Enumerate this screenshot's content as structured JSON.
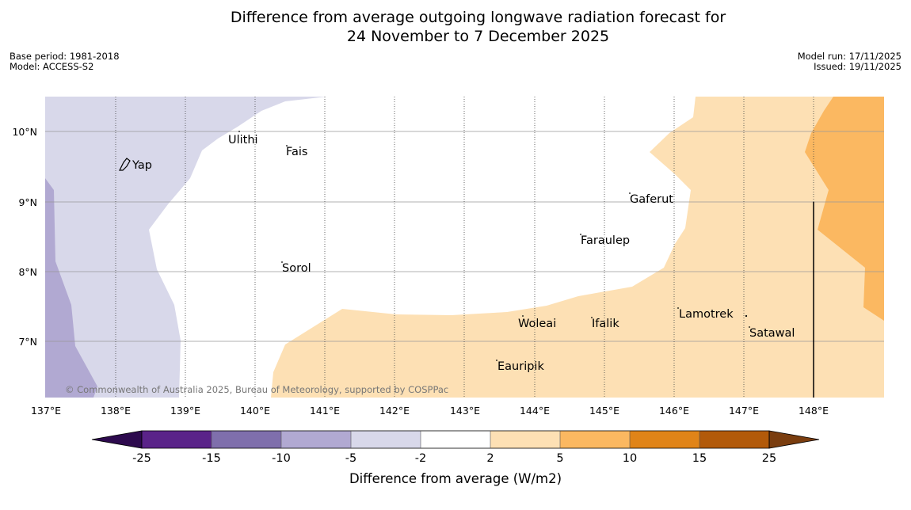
{
  "title": {
    "line1": "Difference from average outgoing longwave radiation forecast for",
    "line2": "24 November to 7 December 2025"
  },
  "meta": {
    "base_period": "Base period: 1981-2018",
    "model": "Model: ACCESS-S2",
    "model_run": "Model run: 17/11/2025",
    "issued": "Issued: 19/11/2025"
  },
  "map": {
    "lon_labels": [
      "137°E",
      "138°E",
      "139°E",
      "140°E",
      "141°E",
      "142°E",
      "143°E",
      "144°E",
      "145°E",
      "146°E",
      "147°E",
      "148°E"
    ],
    "lat_labels": [
      "10°N",
      "9°N",
      "8°N",
      "7°N"
    ],
    "places": [
      {
        "name": "Yap"
      },
      {
        "name": "Ulithi"
      },
      {
        "name": "Fais"
      },
      {
        "name": "Gaferut"
      },
      {
        "name": "Faraulep"
      },
      {
        "name": "Sorol"
      },
      {
        "name": "Lamotrek"
      },
      {
        "name": "Woleai"
      },
      {
        "name": "Ifalik"
      },
      {
        "name": "Satawal"
      },
      {
        "name": "Eauripik"
      }
    ],
    "copyright": "© Commonwealth of Australia 2025, Bureau of Meteorology, supported by COSPPac"
  },
  "colorbar": {
    "label": "Difference from average (W/m2)",
    "ticks": [
      "-25",
      "-15",
      "-10",
      "-5",
      "-2",
      "2",
      "5",
      "10",
      "15",
      "25"
    ],
    "colors": {
      "under": "#2d0a4e",
      "c1": "#5a2389",
      "c2": "#7f6fac",
      "c3": "#b1a9d2",
      "c4": "#d8d8ea",
      "c5": "#ffffff",
      "c6": "#fde0b4",
      "c7": "#fbb861",
      "c8": "#e08418",
      "c9": "#b25a0a",
      "over": "#7a3d0f"
    }
  }
}
